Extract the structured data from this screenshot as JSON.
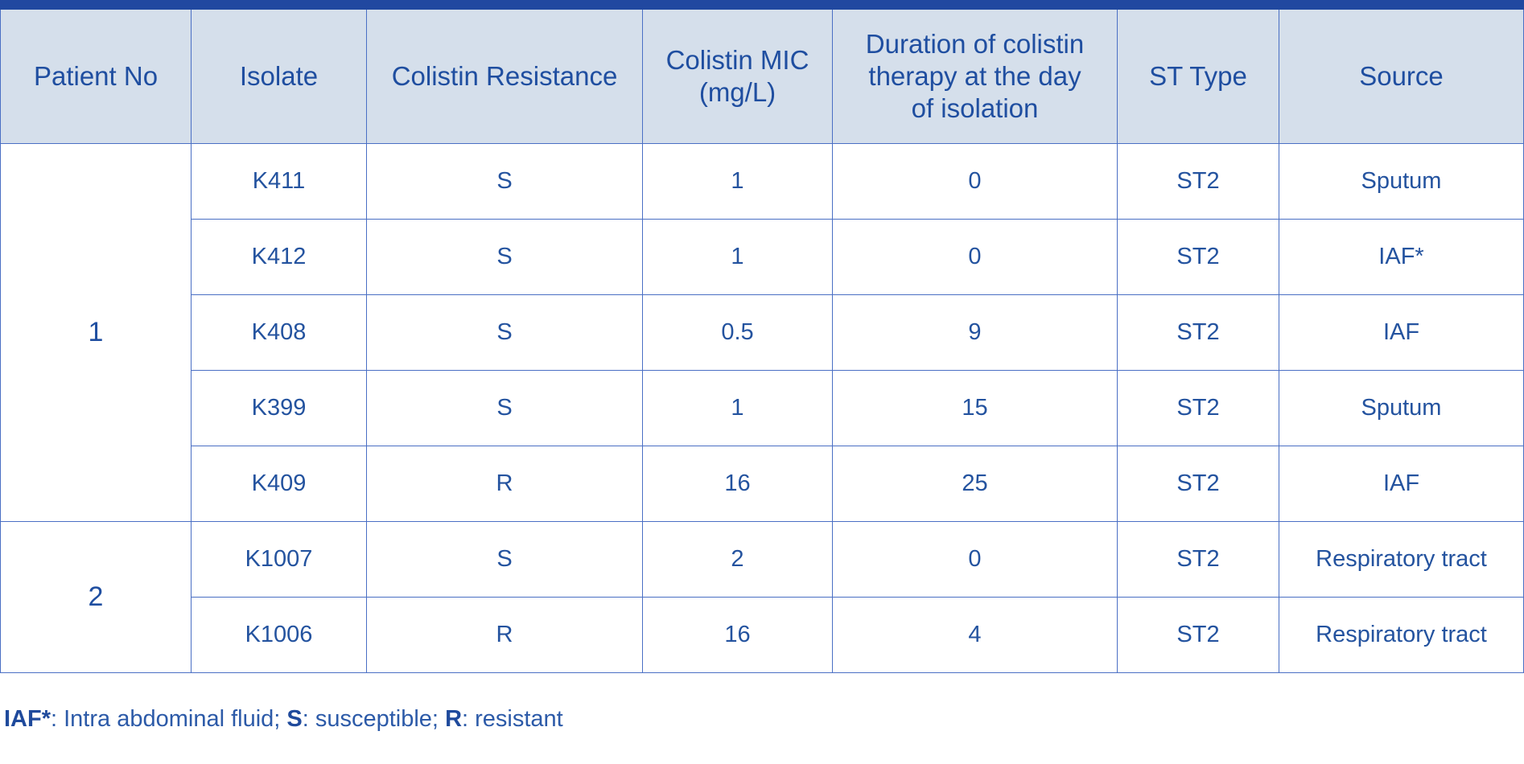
{
  "table": {
    "headers": [
      "Patient No",
      "Isolate",
      "Colistin Resistance",
      "Colistin MIC (mg/L)",
      "Duration of colistin therapy at the day of isolation",
      "ST Type",
      "Source"
    ],
    "groups": [
      {
        "patient": "1",
        "rows": [
          {
            "isolate": "K411",
            "resistance": "S",
            "mic": "1",
            "duration": "0",
            "st": "ST2",
            "source": "Sputum"
          },
          {
            "isolate": "K412",
            "resistance": "S",
            "mic": "1",
            "duration": "0",
            "st": "ST2",
            "source": "IAF*"
          },
          {
            "isolate": "K408",
            "resistance": "S",
            "mic": "0.5",
            "duration": "9",
            "st": "ST2",
            "source": "IAF"
          },
          {
            "isolate": "K399",
            "resistance": "S",
            "mic": "1",
            "duration": "15",
            "st": "ST2",
            "source": "Sputum"
          },
          {
            "isolate": "K409",
            "resistance": "R",
            "mic": "16",
            "duration": "25",
            "st": "ST2",
            "source": "IAF"
          }
        ]
      },
      {
        "patient": "2",
        "rows": [
          {
            "isolate": "K1007",
            "resistance": "S",
            "mic": "2",
            "duration": "0",
            "st": "ST2",
            "source": "Respiratory tract"
          },
          {
            "isolate": "K1006",
            "resistance": "R",
            "mic": "16",
            "duration": "4",
            "st": "ST2",
            "source": "Respiratory tract"
          }
        ]
      }
    ]
  },
  "footnote": {
    "iaf_term": "IAF*",
    "iaf_def": ": Intra abdominal fluid; ",
    "s_term": "S",
    "s_def": ": susceptible; ",
    "r_term": "R",
    "r_def": ": resistant"
  }
}
